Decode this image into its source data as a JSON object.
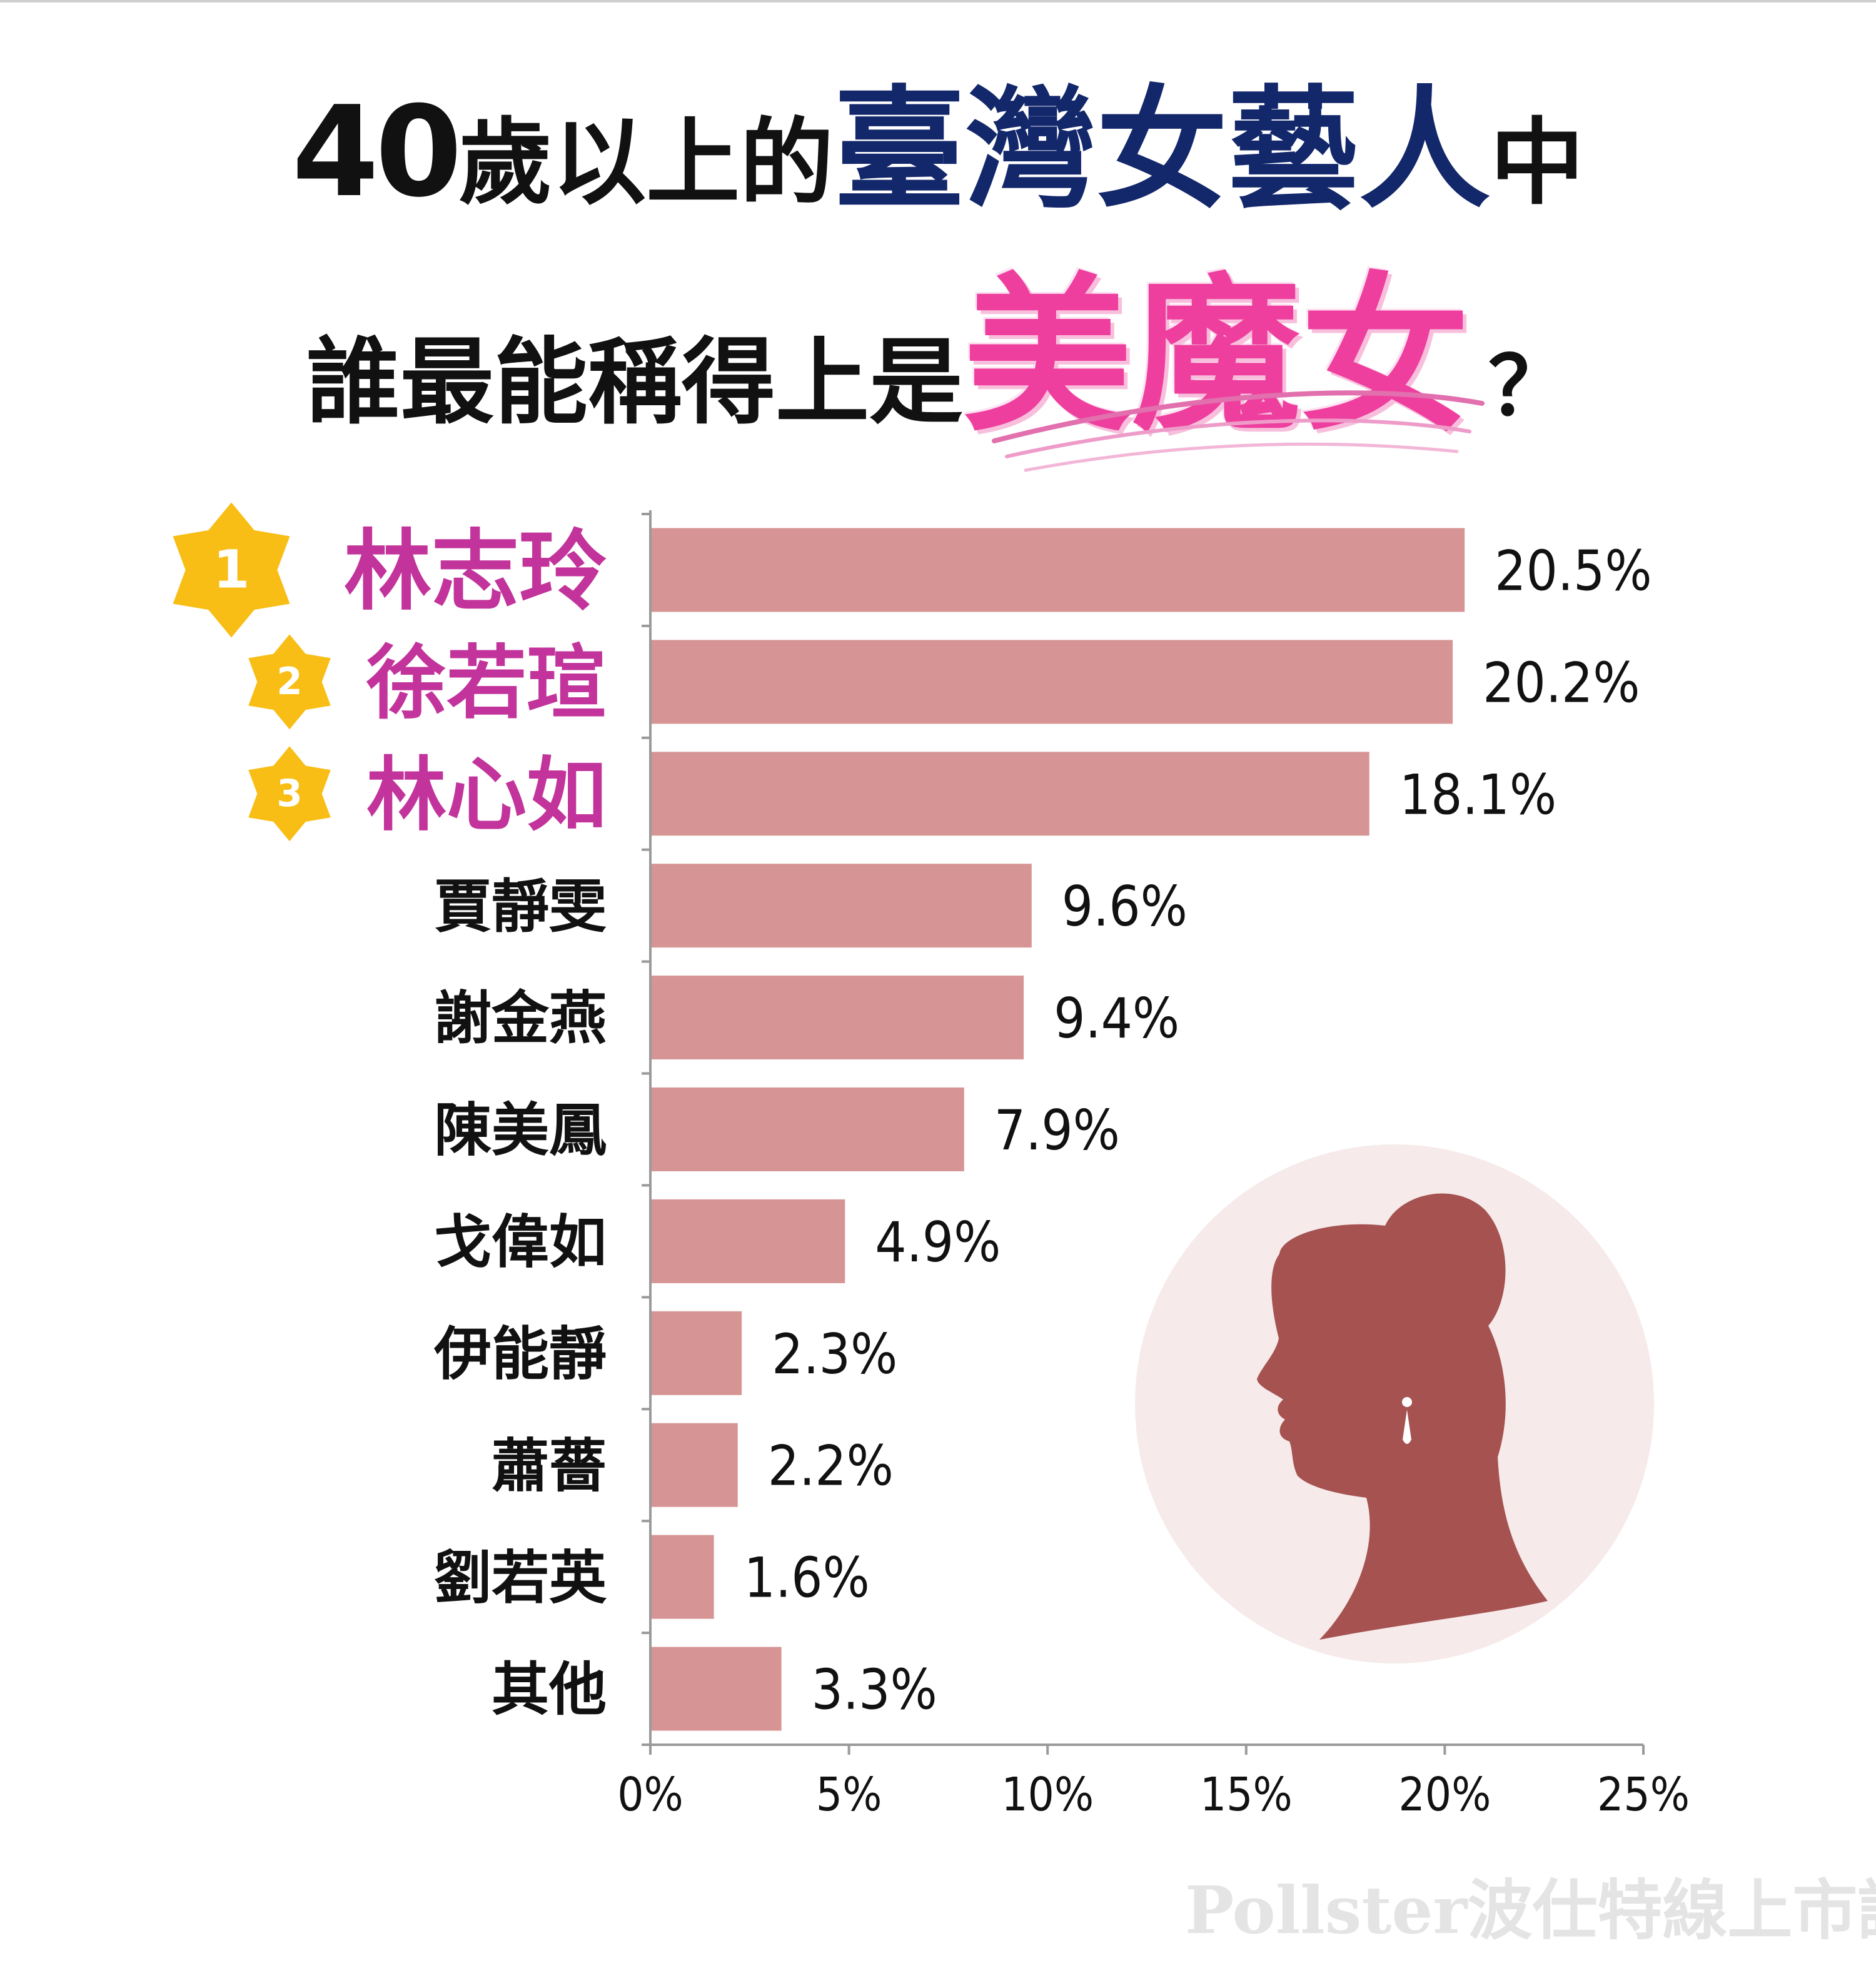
{
  "title": {
    "line1": {
      "number": "40",
      "plain": "歲以上的",
      "highlight": "臺灣女藝人",
      "tail": "中"
    },
    "line2": {
      "plain": "誰最能稱得上是",
      "highlight": "美魔女",
      "question": "？"
    }
  },
  "colors": {
    "bar": "#d69594",
    "top_label": "#c2349b",
    "title_navy": "#13276b",
    "title_pink": "#ee3f9e",
    "rank_star": "#f8be16",
    "silhouette": "#a55250",
    "circle": "#f6eaea"
  },
  "icons": {
    "rank": "star-icon",
    "illustration": "woman-silhouette-icon"
  },
  "watermark": "Pollster波仕特線上市調",
  "chart_data": {
    "type": "bar",
    "orientation": "horizontal",
    "categories": [
      "林志玲",
      "徐若瑄",
      "林心如",
      "賈靜雯",
      "謝金燕",
      "陳美鳳",
      "戈偉如",
      "伊能靜",
      "蕭薔",
      "劉若英",
      "其他"
    ],
    "values": [
      20.5,
      20.2,
      18.1,
      9.6,
      9.4,
      7.9,
      4.9,
      2.3,
      2.2,
      1.6,
      3.3
    ],
    "value_labels": [
      "20.5%",
      "20.2%",
      "18.1%",
      "9.6%",
      "9.4%",
      "7.9%",
      "4.9%",
      "2.3%",
      "2.2%",
      "1.6%",
      "3.3%"
    ],
    "ranks": [
      "1",
      "2",
      "3"
    ],
    "xlim": [
      0,
      25
    ],
    "x_ticks": [
      0,
      5,
      10,
      15,
      20,
      25
    ],
    "x_tick_labels": [
      "0%",
      "5%",
      "10%",
      "15%",
      "20%",
      "25%"
    ],
    "grid": false,
    "legend": "none"
  }
}
